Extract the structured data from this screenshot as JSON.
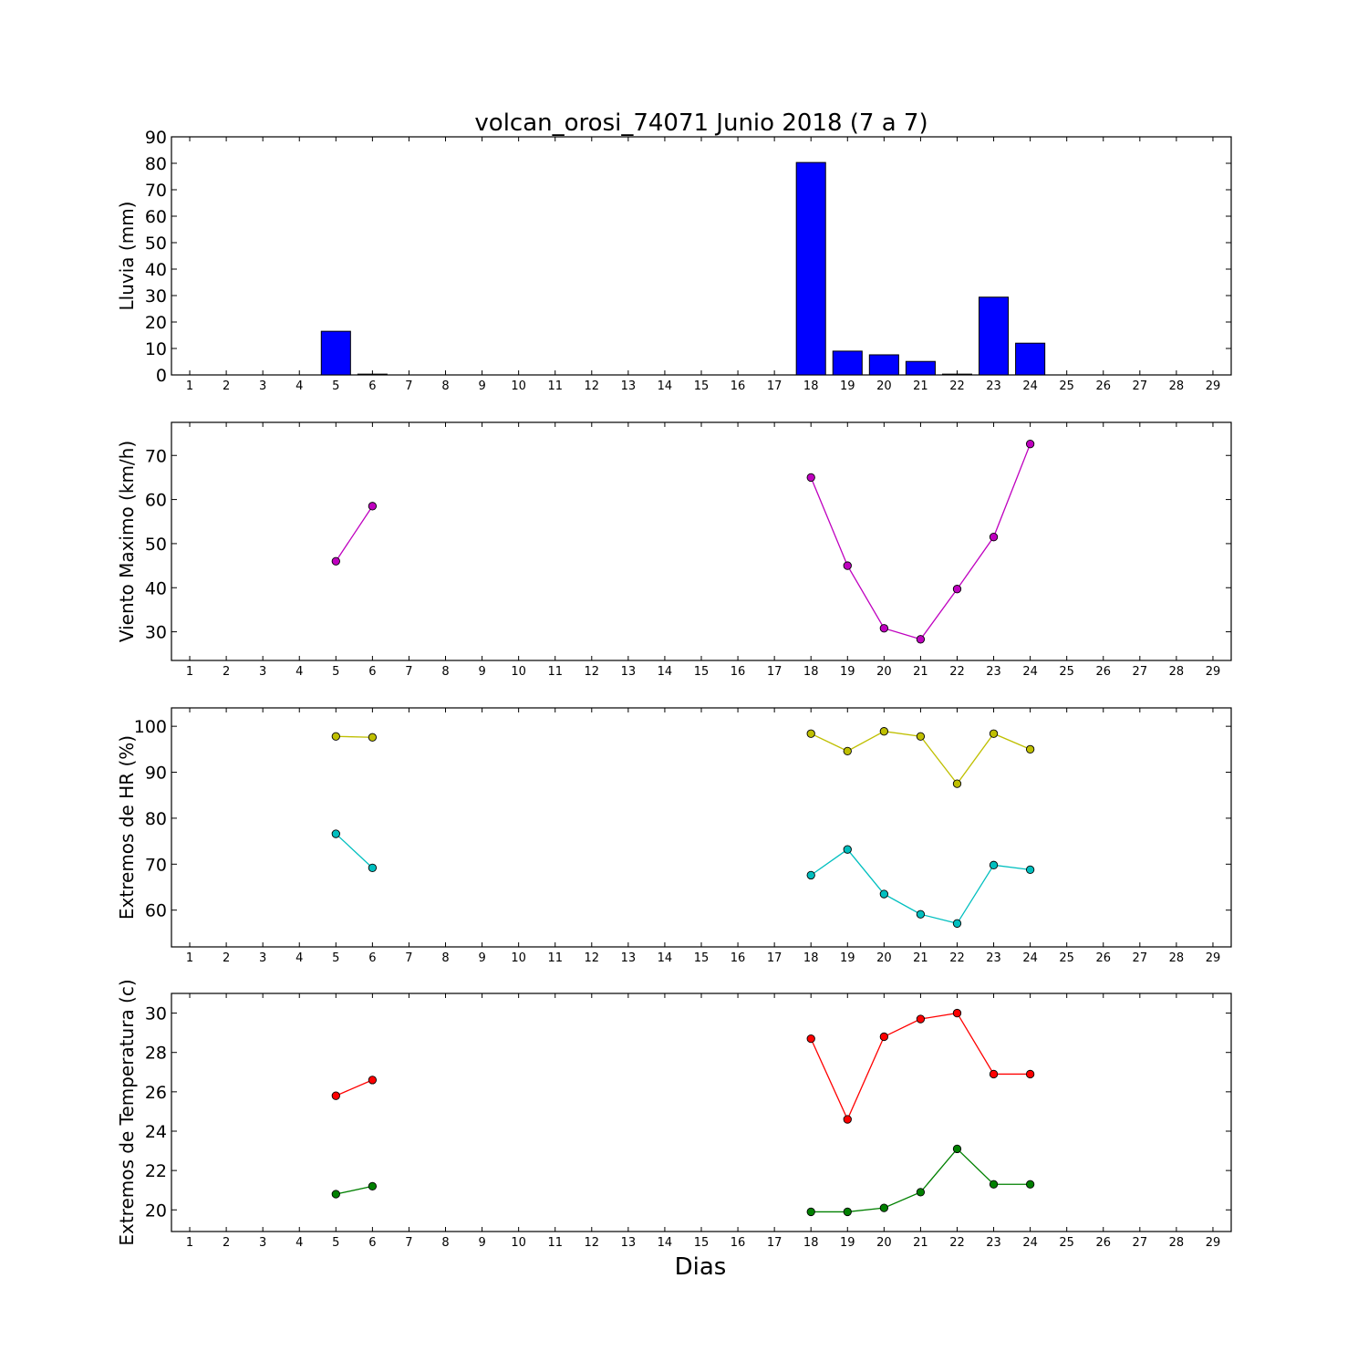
{
  "chart_data": [
    {
      "type": "bar",
      "title": "volcan_orosi_74071 Junio 2018  (7 a 7)",
      "ylabel": "Lluvia (mm)",
      "xlabel": "",
      "xlim": [
        0.5,
        29.5
      ],
      "ylim": [
        0,
        90
      ],
      "yticks": [
        0,
        10,
        20,
        30,
        40,
        50,
        60,
        70,
        80,
        90
      ],
      "categories": [
        1,
        2,
        3,
        4,
        5,
        6,
        7,
        8,
        9,
        10,
        11,
        12,
        13,
        14,
        15,
        16,
        17,
        18,
        19,
        20,
        21,
        22,
        23,
        24,
        25,
        26,
        27,
        28,
        29
      ],
      "series": [
        {
          "color": "#0000ff",
          "x": [
            5,
            6,
            18,
            19,
            20,
            21,
            22,
            23,
            24
          ],
          "values": [
            16.5,
            0.3,
            80.3,
            9.0,
            7.6,
            5.1,
            0.3,
            29.4,
            12.0
          ]
        }
      ]
    },
    {
      "type": "line",
      "title": "",
      "ylabel": "Viento Maximo (km/h)",
      "xlabel": "",
      "xlim": [
        0.5,
        29.5
      ],
      "ylim": [
        23.5,
        77.5
      ],
      "yticks": [
        30,
        40,
        50,
        60,
        70
      ],
      "categories": [
        1,
        2,
        3,
        4,
        5,
        6,
        7,
        8,
        9,
        10,
        11,
        12,
        13,
        14,
        15,
        16,
        17,
        18,
        19,
        20,
        21,
        22,
        23,
        24,
        25,
        26,
        27,
        28,
        29
      ],
      "series": [
        {
          "color": "#bf00bf",
          "x": [
            5,
            6,
            null,
            18,
            19,
            20,
            21,
            22,
            23,
            24
          ],
          "y": [
            46.0,
            58.5,
            null,
            65.0,
            45.0,
            30.8,
            28.3,
            39.7,
            51.5,
            72.6
          ]
        }
      ]
    },
    {
      "type": "line",
      "title": "",
      "ylabel": "Extremos de HR (%)",
      "xlabel": "",
      "xlim": [
        0.5,
        29.5
      ],
      "ylim": [
        52,
        104
      ],
      "yticks": [
        60,
        70,
        80,
        90,
        100
      ],
      "categories": [
        1,
        2,
        3,
        4,
        5,
        6,
        7,
        8,
        9,
        10,
        11,
        12,
        13,
        14,
        15,
        16,
        17,
        18,
        19,
        20,
        21,
        22,
        23,
        24,
        25,
        26,
        27,
        28,
        29
      ],
      "series": [
        {
          "color": "#bfbf00",
          "x": [
            5,
            6,
            null,
            18,
            19,
            20,
            21,
            22,
            23,
            24
          ],
          "y": [
            97.8,
            97.6,
            null,
            98.4,
            94.6,
            98.9,
            97.8,
            87.5,
            98.4,
            95.0
          ]
        },
        {
          "color": "#00bfbf",
          "x": [
            5,
            6,
            null,
            18,
            19,
            20,
            21,
            22,
            23,
            24
          ],
          "y": [
            76.6,
            69.2,
            null,
            67.6,
            73.2,
            63.5,
            59.1,
            57.1,
            69.8,
            68.8
          ]
        }
      ]
    },
    {
      "type": "line",
      "title": "",
      "ylabel": "Extremos de Temperatura (c)",
      "xlabel": "Dias",
      "xlim": [
        0.5,
        29.5
      ],
      "ylim": [
        18.9,
        31.0
      ],
      "yticks": [
        20,
        22,
        24,
        26,
        28,
        30
      ],
      "categories": [
        1,
        2,
        3,
        4,
        5,
        6,
        7,
        8,
        9,
        10,
        11,
        12,
        13,
        14,
        15,
        16,
        17,
        18,
        19,
        20,
        21,
        22,
        23,
        24,
        25,
        26,
        27,
        28,
        29
      ],
      "series": [
        {
          "color": "#ff0000",
          "x": [
            5,
            6,
            null,
            18,
            19,
            20,
            21,
            22,
            23,
            24
          ],
          "y": [
            25.8,
            26.6,
            null,
            28.7,
            24.6,
            28.8,
            29.7,
            30.0,
            26.9,
            26.9
          ]
        },
        {
          "color": "#008000",
          "x": [
            5,
            6,
            null,
            18,
            19,
            20,
            21,
            22,
            23,
            24
          ],
          "y": [
            20.8,
            21.2,
            null,
            19.9,
            19.9,
            20.1,
            20.9,
            23.1,
            21.3,
            21.3
          ]
        }
      ]
    }
  ]
}
